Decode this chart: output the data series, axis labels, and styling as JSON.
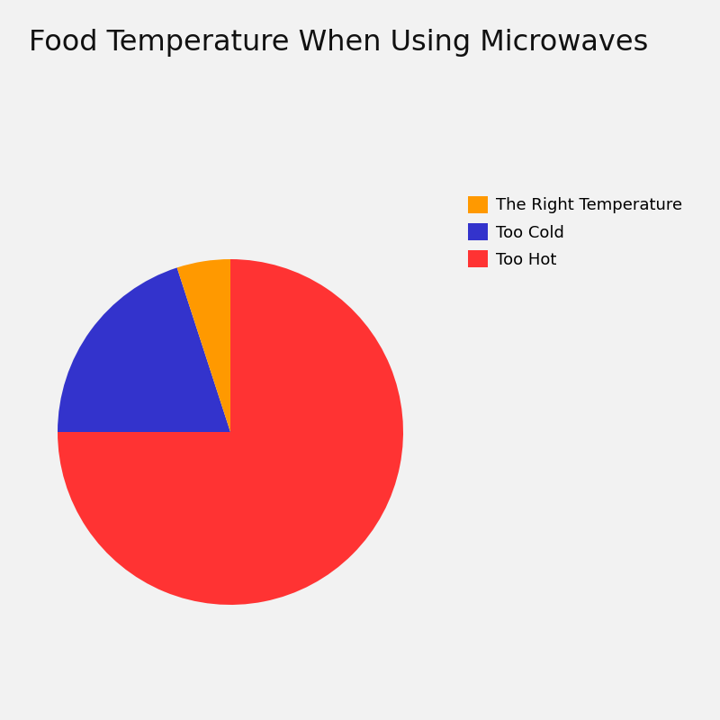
{
  "title": "Food Temperature When Using Microwaves",
  "labels": [
    "Too Hot",
    "Too Cold",
    "The Right Temperature"
  ],
  "values": [
    75,
    20,
    5
  ],
  "colors": [
    "#ff3333",
    "#3333cc",
    "#ff9900"
  ],
  "background_color": "#f2f2f2",
  "title_fontsize": 23,
  "legend_fontsize": 13,
  "startangle": 90
}
